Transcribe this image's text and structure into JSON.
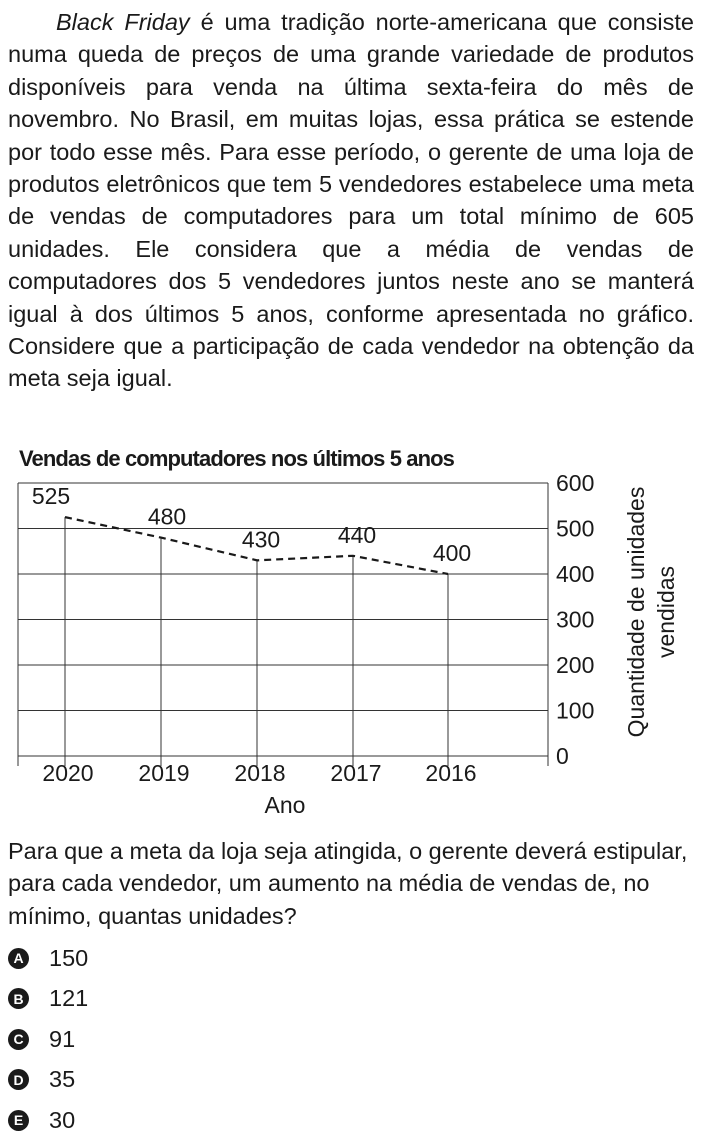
{
  "intro": {
    "italic_lead": "Black Friday",
    "text": " é uma tradição norte-americana que consiste numa queda de preços de uma grande variedade de produtos disponíveis para venda na última sexta-feira do mês de novembro. No Brasil, em muitas lojas, essa prática se estende por todo esse mês. Para esse período, o gerente de uma loja de produtos eletrônicos que tem 5 vendedores estabelece uma meta de vendas de computadores para um total mínimo de 605 unidades. Ele considera que a média de vendas de computadores dos 5 vendedores juntos neste ano se manterá igual à dos últimos 5 anos, conforme apresentada no gráfico. Considere que a participação de cada vendedor na obtenção da meta seja igual."
  },
  "chart_data": {
    "type": "line",
    "title": "Vendas de computadores nos últimos 5 anos",
    "categories": [
      "2020",
      "2019",
      "2018",
      "2017",
      "2016"
    ],
    "values": [
      525,
      480,
      430,
      440,
      400
    ],
    "data_labels": [
      "525",
      "480",
      "430",
      "440",
      "400"
    ],
    "xlabel": "Ano",
    "ylabel_line1": "Quantidade de unidades",
    "ylabel_line2": "vendidas",
    "yticks": [
      "0",
      "100",
      "200",
      "300",
      "400",
      "500",
      "600"
    ],
    "ylim": [
      0,
      600
    ],
    "line_style": "dashed",
    "grid": true,
    "y_axis_side": "right"
  },
  "question": "Para que a meta da loja seja atingida, o gerente deverá estipular, para cada vendedor, um aumento na média de vendas de, no mínimo, quantas unidades?",
  "options": [
    {
      "letter": "A",
      "value": "150"
    },
    {
      "letter": "B",
      "value": "121"
    },
    {
      "letter": "C",
      "value": "91"
    },
    {
      "letter": "D",
      "value": "35"
    },
    {
      "letter": "E",
      "value": "30"
    }
  ]
}
